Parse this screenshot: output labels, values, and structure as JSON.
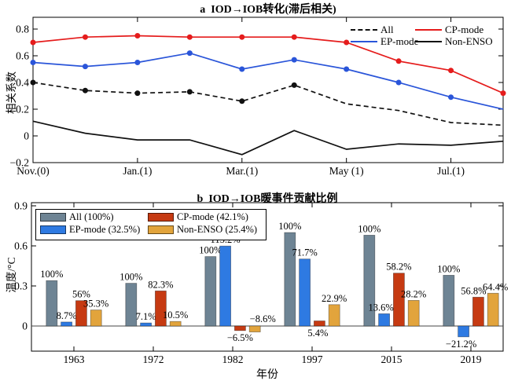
{
  "chart_data": [
    {
      "type": "line",
      "panel": "a",
      "title": "a  IOD→IOB转化(滞后相关)",
      "ylabel": "相关系数",
      "xlabel": "",
      "ylim": [
        -0.2,
        0.9
      ],
      "yticks": [
        -0.2,
        0,
        0.2,
        0.4,
        0.6,
        0.8
      ],
      "ytick_labels": [
        "−0.2",
        "0",
        "0.2",
        "0.4",
        "0.6",
        "0.8"
      ],
      "x_count": 10,
      "xticks": [
        0,
        2,
        4,
        6,
        8
      ],
      "xtick_labels": [
        "Nov.(0)",
        "Jan.(1)",
        "Mar.(1)",
        "May (1)",
        "Jul.(1)"
      ],
      "grid": false,
      "legend_position": "top-right",
      "series": [
        {
          "name": "All",
          "color": "#111111",
          "line_style": "dashed",
          "marker": "circle",
          "marker_indices": [
            0,
            1,
            2,
            3,
            4,
            5
          ],
          "values": [
            0.4,
            0.34,
            0.32,
            0.33,
            0.26,
            0.38,
            0.24,
            0.19,
            0.1,
            0.08
          ]
        },
        {
          "name": "EP-mode",
          "color": "#2a55d9",
          "line_style": "solid",
          "marker": "circle",
          "marker_indices": [
            0,
            1,
            2,
            3,
            4,
            5,
            6,
            7,
            8
          ],
          "values": [
            0.55,
            0.52,
            0.55,
            0.62,
            0.5,
            0.57,
            0.5,
            0.4,
            0.29,
            0.2
          ]
        },
        {
          "name": "CP-mode",
          "color": "#e51c1c",
          "line_style": "solid",
          "marker": "circle",
          "marker_indices": [
            0,
            1,
            2,
            3,
            4,
            5,
            6,
            7,
            8,
            9
          ],
          "values": [
            0.7,
            0.74,
            0.75,
            0.74,
            0.74,
            0.74,
            0.7,
            0.56,
            0.49,
            0.32
          ]
        },
        {
          "name": "Non-ENSO",
          "color": "#111111",
          "line_style": "solid",
          "marker": "none",
          "marker_indices": [],
          "values": [
            0.11,
            0.02,
            -0.03,
            -0.03,
            -0.14,
            0.04,
            -0.1,
            -0.06,
            -0.07,
            -0.04
          ]
        }
      ]
    },
    {
      "type": "bar",
      "panel": "b",
      "title": "b  IOD→IOB暖事件贡献比例",
      "ylabel": "温度/°C",
      "xlabel": "年份",
      "ylim": [
        -0.2,
        0.9
      ],
      "yticks": [
        0,
        0.3,
        0.6,
        0.9
      ],
      "ytick_labels": [
        "0",
        "0.3",
        "0.6",
        "0.9"
      ],
      "categories": [
        "1963",
        "1972",
        "1982",
        "1997",
        "2015",
        "2019"
      ],
      "grid": false,
      "legend_position": "top-left",
      "series": [
        {
          "name": "All (100%)",
          "color": "#6e8494",
          "values": [
            0.34,
            0.32,
            0.52,
            0.7,
            0.68,
            0.38
          ],
          "labels": [
            "100%",
            "100%",
            "100%",
            "100%",
            "100%",
            "100%"
          ],
          "label_pos": [
            "a",
            "a",
            "a",
            "a",
            "a",
            "a"
          ],
          "label_dx": [
            0,
            0,
            0,
            0,
            0,
            0
          ]
        },
        {
          "name": "EP-mode (32.5%)",
          "color": "#2e7ae2",
          "values": [
            0.03,
            0.023,
            0.599,
            0.502,
            0.092,
            -0.081
          ],
          "labels": [
            "8.7%",
            "7.1%",
            "115.2%",
            "71.7%",
            "13.6%",
            "−21.2%"
          ],
          "label_pos": [
            "a",
            "a",
            "a",
            "a",
            "a",
            "b"
          ],
          "label_dx": [
            0,
            0,
            0,
            0,
            -4,
            -3
          ]
        },
        {
          "name": "CP-mode (42.1%)",
          "color": "#c63a12",
          "values": [
            0.19,
            0.263,
            -0.034,
            0.038,
            0.396,
            0.216
          ],
          "labels": [
            "56%",
            "82.3%",
            "−6.5%",
            "5.4%",
            "58.2%",
            "56.8%"
          ],
          "label_pos": [
            "a",
            "a",
            "b",
            "b",
            "a",
            "a"
          ],
          "label_dx": [
            0,
            0,
            0,
            -2,
            0,
            -6
          ]
        },
        {
          "name": "Non-ENSO (25.4%)",
          "color": "#e2a43c",
          "values": [
            0.12,
            0.034,
            -0.045,
            0.16,
            0.192,
            0.245
          ],
          "labels": [
            "35.3%",
            "10.5%",
            "−8.6%",
            "22.9%",
            "28.2%",
            "64.4%"
          ],
          "label_pos": [
            "a",
            "a",
            "z",
            "a",
            "a",
            "a"
          ],
          "label_dx": [
            0,
            0,
            10,
            0,
            0,
            3
          ]
        }
      ]
    }
  ]
}
